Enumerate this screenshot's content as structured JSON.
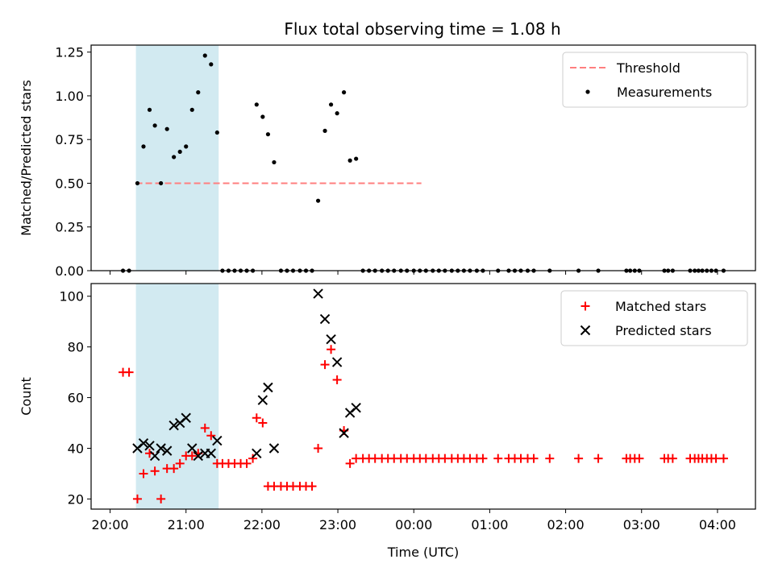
{
  "figure_title": "Flux total observing time = 1.08 h",
  "chart_data": [
    {
      "type": "scatter",
      "panel": "top",
      "title": "Flux total observing time = 1.08 h",
      "xlabel": "",
      "ylabel": "Matched/Predicted stars",
      "ylim": [
        0,
        1.29
      ],
      "yticks": [
        "0.00",
        "0.25",
        "0.50",
        "0.75",
        "1.00",
        "1.25"
      ],
      "ytick_values": [
        0,
        0.25,
        0.5,
        0.75,
        1.0,
        1.25
      ],
      "highlight_span": {
        "x0": 20.34,
        "x1": 21.43,
        "color": "#add8e6"
      },
      "legend": {
        "location": "upper right",
        "entries": [
          "Threshold",
          "Measurements"
        ]
      },
      "series": [
        {
          "name": "Threshold",
          "style": "dashed-line",
          "color": "#ff7f7f",
          "x": [
            20.34,
            24.1
          ],
          "y": [
            0.5,
            0.5
          ]
        },
        {
          "name": "Measurements",
          "style": "dot",
          "color": "#000000",
          "x": [
            20.17,
            20.25,
            20.36,
            20.44,
            20.52,
            20.59,
            20.67,
            20.75,
            20.84,
            20.92,
            21.0,
            21.08,
            21.16,
            21.25,
            21.33,
            21.41,
            21.48,
            21.56,
            21.64,
            21.72,
            21.8,
            21.88,
            21.93,
            22.01,
            22.08,
            22.16,
            22.25,
            22.33,
            22.41,
            22.5,
            22.58,
            22.66,
            22.74,
            22.83,
            22.91,
            22.99,
            23.08,
            23.16,
            23.24,
            23.33,
            23.41,
            23.49,
            23.58,
            23.66,
            23.74,
            23.83,
            23.91,
            24.0,
            24.08,
            24.16,
            24.25,
            24.33,
            24.41,
            24.5,
            24.58,
            24.66,
            24.74,
            24.83,
            24.91,
            25.11,
            25.25,
            25.33,
            25.41,
            25.5,
            25.58,
            25.79,
            26.17,
            26.43,
            26.8,
            26.85,
            26.91,
            26.97,
            27.3,
            27.35,
            27.41,
            27.64,
            27.7,
            27.75,
            27.8,
            27.86,
            27.92,
            27.98,
            28.08
          ],
          "y": [
            0,
            0,
            0.5,
            0.71,
            0.92,
            0.83,
            0.5,
            0.81,
            0.65,
            0.68,
            0.71,
            0.92,
            1.02,
            1.23,
            1.18,
            0.79,
            0,
            0,
            0,
            0,
            0,
            0,
            0.95,
            0.88,
            0.78,
            0.62,
            0,
            0,
            0,
            0,
            0,
            0,
            0.4,
            0.8,
            0.95,
            0.9,
            1.02,
            0.63,
            0.64,
            0,
            0,
            0,
            0,
            0,
            0,
            0,
            0,
            0,
            0,
            0,
            0,
            0,
            0,
            0,
            0,
            0,
            0,
            0,
            0,
            0,
            0,
            0,
            0,
            0,
            0,
            0,
            0,
            0,
            0,
            0,
            0,
            0,
            0,
            0,
            0,
            0,
            0,
            0,
            0,
            0,
            0,
            0,
            0
          ]
        }
      ]
    },
    {
      "type": "scatter",
      "panel": "bottom",
      "xlabel": "Time (UTC)",
      "ylabel": "Count",
      "ylim": [
        16,
        105
      ],
      "yticks": [
        "20",
        "40",
        "60",
        "80",
        "100"
      ],
      "ytick_values": [
        20,
        40,
        60,
        80,
        100
      ],
      "xticks": [
        "20:00",
        "21:00",
        "22:00",
        "23:00",
        "00:00",
        "01:00",
        "02:00",
        "03:00",
        "04:00"
      ],
      "xtick_values": [
        20,
        21,
        22,
        23,
        24,
        25,
        26,
        27,
        28
      ],
      "xlim": [
        19.75,
        28.5
      ],
      "highlight_span": {
        "x0": 20.34,
        "x1": 21.43,
        "color": "#add8e6"
      },
      "legend": {
        "location": "upper right",
        "entries": [
          "Matched stars",
          "Predicted stars"
        ]
      },
      "series": [
        {
          "name": "Matched stars",
          "marker": "plus",
          "color": "#ff0000",
          "x": [
            20.17,
            20.25,
            20.36,
            20.44,
            20.52,
            20.59,
            20.67,
            20.75,
            20.84,
            20.92,
            21.0,
            21.08,
            21.16,
            21.25,
            21.33,
            21.41,
            21.48,
            21.56,
            21.64,
            21.72,
            21.8,
            21.88,
            21.93,
            22.01,
            22.08,
            22.16,
            22.25,
            22.33,
            22.41,
            22.5,
            22.58,
            22.66,
            22.74,
            22.83,
            22.91,
            22.99,
            23.08,
            23.16,
            23.24,
            23.33,
            23.41,
            23.49,
            23.58,
            23.66,
            23.74,
            23.83,
            23.91,
            24.0,
            24.08,
            24.16,
            24.25,
            24.33,
            24.41,
            24.5,
            24.58,
            24.66,
            24.74,
            24.83,
            24.91,
            25.11,
            25.25,
            25.33,
            25.41,
            25.5,
            25.58,
            25.79,
            26.17,
            26.43,
            26.8,
            26.85,
            26.91,
            26.97,
            27.3,
            27.35,
            27.41,
            27.64,
            27.7,
            27.75,
            27.8,
            27.86,
            27.92,
            27.98,
            28.08
          ],
          "y": [
            70,
            70,
            20,
            30,
            38,
            31,
            20,
            32,
            32,
            34,
            37,
            37,
            38,
            48,
            45,
            34,
            34,
            34,
            34,
            34,
            34,
            36,
            52,
            50,
            25,
            25,
            25,
            25,
            25,
            25,
            25,
            25,
            40,
            73,
            79,
            67,
            47,
            34,
            36,
            36,
            36,
            36,
            36,
            36,
            36,
            36,
            36,
            36,
            36,
            36,
            36,
            36,
            36,
            36,
            36,
            36,
            36,
            36,
            36,
            36,
            36,
            36,
            36,
            36,
            36,
            36,
            36,
            36,
            36,
            36,
            36,
            36,
            36,
            36,
            36,
            36,
            36,
            36,
            36,
            36,
            36,
            36,
            36
          ]
        },
        {
          "name": "Predicted stars",
          "marker": "x",
          "color": "#000000",
          "x": [
            20.36,
            20.44,
            20.52,
            20.59,
            20.67,
            20.75,
            20.84,
            20.92,
            21.0,
            21.08,
            21.16,
            21.25,
            21.33,
            21.41,
            21.93,
            22.01,
            22.08,
            22.16,
            22.74,
            22.83,
            22.91,
            22.99,
            23.08,
            23.16,
            23.24
          ],
          "y": [
            40,
            42,
            41,
            37,
            40,
            39,
            49,
            50,
            52,
            40,
            37,
            38,
            38,
            43,
            38,
            59,
            64,
            40,
            101,
            91,
            83,
            74,
            46,
            54,
            56
          ]
        }
      ]
    }
  ]
}
